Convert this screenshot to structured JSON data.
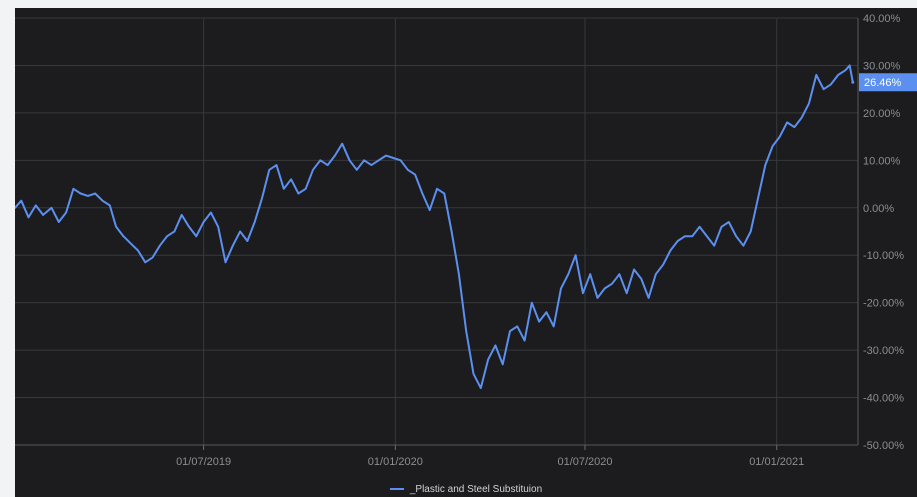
{
  "chart_data": {
    "type": "line",
    "title": "",
    "xlabel": "",
    "ylabel": "",
    "x_range": [
      "2019-01-01",
      "2021-03-20"
    ],
    "ylim": [
      -50,
      40
    ],
    "x_tick_labels": [
      "01/07/2019",
      "01/01/2020",
      "01/07/2020",
      "01/01/2021"
    ],
    "x_tick_dates": [
      "2019-07-01",
      "2020-01-01",
      "2020-07-01",
      "2021-01-01"
    ],
    "y_tick_labels": [
      "40.00%",
      "30.00%",
      "20.00%",
      "10.00%",
      "0.00%",
      "-10.00%",
      "-20.00%",
      "-30.00%",
      "-40.00%",
      "-50.00%"
    ],
    "y_tick_values": [
      40,
      30,
      20,
      10,
      0,
      -10,
      -20,
      -30,
      -40,
      -50
    ],
    "grid": true,
    "legend_position": "bottom",
    "last_value_label": "26.46%",
    "last_value": 26.46,
    "series": [
      {
        "name": "_Plastic and Steel Substituion",
        "color": "#5b8ff0",
        "points": [
          [
            "2019-01-01",
            0
          ],
          [
            "2019-01-07",
            1.5
          ],
          [
            "2019-01-14",
            -2
          ],
          [
            "2019-01-21",
            0.5
          ],
          [
            "2019-01-28",
            -1.5
          ],
          [
            "2019-02-05",
            0
          ],
          [
            "2019-02-12",
            -3
          ],
          [
            "2019-02-19",
            -1
          ],
          [
            "2019-02-26",
            4
          ],
          [
            "2019-03-05",
            3
          ],
          [
            "2019-03-12",
            2.5
          ],
          [
            "2019-03-19",
            3
          ],
          [
            "2019-03-26",
            1.5
          ],
          [
            "2019-04-02",
            0.5
          ],
          [
            "2019-04-08",
            -4
          ],
          [
            "2019-04-15",
            -6
          ],
          [
            "2019-04-22",
            -7.5
          ],
          [
            "2019-04-29",
            -9
          ],
          [
            "2019-05-06",
            -11.5
          ],
          [
            "2019-05-13",
            -10.5
          ],
          [
            "2019-05-20",
            -8
          ],
          [
            "2019-05-27",
            -6
          ],
          [
            "2019-06-03",
            -5
          ],
          [
            "2019-06-10",
            -1.5
          ],
          [
            "2019-06-17",
            -4
          ],
          [
            "2019-06-24",
            -6
          ],
          [
            "2019-07-01",
            -3
          ],
          [
            "2019-07-08",
            -1
          ],
          [
            "2019-07-15",
            -4
          ],
          [
            "2019-07-22",
            -11.5
          ],
          [
            "2019-07-29",
            -8
          ],
          [
            "2019-08-05",
            -5
          ],
          [
            "2019-08-12",
            -7
          ],
          [
            "2019-08-19",
            -3
          ],
          [
            "2019-08-26",
            2
          ],
          [
            "2019-09-02",
            8
          ],
          [
            "2019-09-09",
            9
          ],
          [
            "2019-09-16",
            4
          ],
          [
            "2019-09-23",
            6
          ],
          [
            "2019-09-30",
            3
          ],
          [
            "2019-10-07",
            4
          ],
          [
            "2019-10-14",
            8
          ],
          [
            "2019-10-21",
            10
          ],
          [
            "2019-10-28",
            9
          ],
          [
            "2019-11-04",
            11
          ],
          [
            "2019-11-11",
            13.5
          ],
          [
            "2019-11-18",
            10
          ],
          [
            "2019-11-25",
            8
          ],
          [
            "2019-12-02",
            10
          ],
          [
            "2019-12-09",
            9
          ],
          [
            "2019-12-16",
            10
          ],
          [
            "2019-12-23",
            11
          ],
          [
            "2019-12-30",
            10.5
          ],
          [
            "2020-01-06",
            10
          ],
          [
            "2020-01-13",
            8
          ],
          [
            "2020-01-20",
            7
          ],
          [
            "2020-01-27",
            3
          ],
          [
            "2020-02-03",
            -0.5
          ],
          [
            "2020-02-10",
            4
          ],
          [
            "2020-02-17",
            3
          ],
          [
            "2020-02-24",
            -5
          ],
          [
            "2020-03-02",
            -14
          ],
          [
            "2020-03-09",
            -26
          ],
          [
            "2020-03-16",
            -35
          ],
          [
            "2020-03-23",
            -38
          ],
          [
            "2020-03-30",
            -32
          ],
          [
            "2020-04-06",
            -29
          ],
          [
            "2020-04-13",
            -33
          ],
          [
            "2020-04-20",
            -26
          ],
          [
            "2020-04-27",
            -25
          ],
          [
            "2020-05-04",
            -28
          ],
          [
            "2020-05-11",
            -20
          ],
          [
            "2020-05-18",
            -24
          ],
          [
            "2020-05-25",
            -22
          ],
          [
            "2020-06-01",
            -25
          ],
          [
            "2020-06-08",
            -17
          ],
          [
            "2020-06-15",
            -14
          ],
          [
            "2020-06-22",
            -10
          ],
          [
            "2020-06-29",
            -18
          ],
          [
            "2020-07-06",
            -14
          ],
          [
            "2020-07-13",
            -19
          ],
          [
            "2020-07-20",
            -17
          ],
          [
            "2020-07-27",
            -16
          ],
          [
            "2020-08-03",
            -14
          ],
          [
            "2020-08-10",
            -18
          ],
          [
            "2020-08-17",
            -13
          ],
          [
            "2020-08-24",
            -15
          ],
          [
            "2020-08-31",
            -19
          ],
          [
            "2020-09-07",
            -14
          ],
          [
            "2020-09-14",
            -12
          ],
          [
            "2020-09-21",
            -9
          ],
          [
            "2020-09-28",
            -7
          ],
          [
            "2020-10-05",
            -6
          ],
          [
            "2020-10-12",
            -6
          ],
          [
            "2020-10-19",
            -4
          ],
          [
            "2020-10-26",
            -6
          ],
          [
            "2020-11-02",
            -8
          ],
          [
            "2020-11-09",
            -4
          ],
          [
            "2020-11-16",
            -3
          ],
          [
            "2020-11-23",
            -6
          ],
          [
            "2020-11-30",
            -8
          ],
          [
            "2020-12-07",
            -5
          ],
          [
            "2020-12-14",
            2
          ],
          [
            "2020-12-21",
            9
          ],
          [
            "2020-12-28",
            13
          ],
          [
            "2021-01-04",
            15
          ],
          [
            "2021-01-11",
            18
          ],
          [
            "2021-01-18",
            17
          ],
          [
            "2021-01-25",
            19
          ],
          [
            "2021-02-01",
            22
          ],
          [
            "2021-02-08",
            28
          ],
          [
            "2021-02-15",
            25
          ],
          [
            "2021-02-22",
            26
          ],
          [
            "2021-03-01",
            28
          ],
          [
            "2021-03-08",
            29
          ],
          [
            "2021-03-12",
            30
          ],
          [
            "2021-03-15",
            26.46
          ]
        ]
      }
    ]
  }
}
